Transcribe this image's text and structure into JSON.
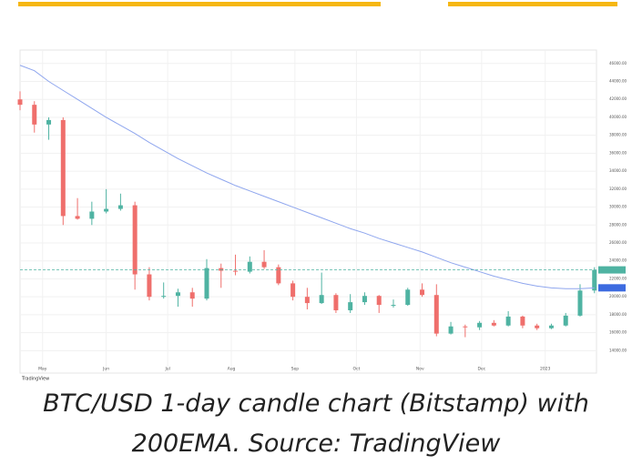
{
  "chart_data": {
    "type": "candlestick",
    "caption_lines": [
      "BTC/USD 1-day candle chart (Bitstamp) with",
      "200EMA. Source: TradingView"
    ],
    "watermark": "TradingView",
    "x": [
      0,
      7,
      14,
      21,
      28,
      35,
      42,
      49,
      56,
      63,
      70,
      77,
      84,
      91,
      98,
      105,
      112,
      119,
      126,
      133,
      140,
      147,
      154,
      161,
      168,
      175,
      182,
      189,
      196,
      203,
      210,
      217,
      224,
      231,
      238,
      245,
      252,
      259,
      266,
      273,
      280
    ],
    "open": [
      42000,
      41400,
      39200,
      39700,
      29000,
      28700,
      29500,
      29800,
      30200,
      22500,
      20000,
      20100,
      20500,
      19800,
      23200,
      22900,
      22800,
      23900,
      23300,
      21500,
      20000,
      19300,
      20200,
      18500,
      19400,
      20100,
      19100,
      19100,
      20800,
      20200,
      15900,
      16700,
      16600,
      17100,
      16800,
      17800,
      16800,
      16500,
      16800,
      17900,
      20700
    ],
    "high": [
      42900,
      41800,
      40000,
      40000,
      31000,
      30600,
      32000,
      31500,
      30600,
      23300,
      21600,
      20900,
      21000,
      24200,
      23700,
      24700,
      24500,
      25200,
      23600,
      21800,
      21000,
      22700,
      20400,
      20300,
      20500,
      20200,
      19700,
      21000,
      21500,
      21400,
      17200,
      16900,
      17300,
      17400,
      18400,
      17900,
      17000,
      17000,
      18200,
      21400,
      23300
    ],
    "low": [
      40800,
      38300,
      37500,
      28000,
      28600,
      28000,
      29300,
      29600,
      20800,
      19600,
      19800,
      18900,
      18900,
      19600,
      21000,
      22400,
      22600,
      23100,
      21300,
      19600,
      18600,
      19200,
      18200,
      18200,
      19100,
      18200,
      18800,
      19000,
      20000,
      15600,
      15800,
      15500,
      16300,
      16700,
      16700,
      16500,
      16300,
      16400,
      16700,
      17800,
      20400
    ],
    "close": [
      41400,
      39200,
      39700,
      29000,
      28700,
      29500,
      29800,
      30200,
      22500,
      20000,
      20100,
      20500,
      19800,
      23200,
      22900,
      22800,
      23900,
      23300,
      21500,
      20000,
      19300,
      20200,
      18500,
      19400,
      20100,
      19100,
      19100,
      20800,
      20200,
      15900,
      16700,
      16600,
      17100,
      16800,
      17800,
      16800,
      16500,
      16800,
      17900,
      20700,
      23000
    ],
    "up_color": "#4fb3a2",
    "down_color": "#ef6f6c",
    "ema": {
      "color": "#8fa6ee",
      "values": [
        45800,
        45200,
        44000,
        43000,
        42000,
        41000,
        40000,
        39100,
        38200,
        37200,
        36300,
        35400,
        34600,
        33800,
        33100,
        32400,
        31800,
        31200,
        30600,
        30000,
        29400,
        28800,
        28200,
        27600,
        27100,
        26500,
        26000,
        25500,
        25000,
        24400,
        23800,
        23300,
        22800,
        22300,
        21900,
        21500,
        21200,
        21000,
        20900,
        20900,
        21000
      ]
    },
    "xlim": [
      0,
      281
    ],
    "xticks": [
      {
        "value": 11,
        "label": "May"
      },
      {
        "value": 42,
        "label": "Jun"
      },
      {
        "value": 72,
        "label": "Jul"
      },
      {
        "value": 103,
        "label": "Aug"
      },
      {
        "value": 134,
        "label": "Sep"
      },
      {
        "value": 164,
        "label": "Oct"
      },
      {
        "value": 195,
        "label": "Nov"
      },
      {
        "value": 225,
        "label": "Dec"
      },
      {
        "value": 256,
        "label": "2023"
      }
    ],
    "ylim": [
      11500,
      47500
    ],
    "yticks": [
      {
        "value": 14000,
        "label": "14000.00"
      },
      {
        "value": 16000,
        "label": "16000.00"
      },
      {
        "value": 18000,
        "label": "18000.00"
      },
      {
        "value": 20000,
        "label": "20000.00"
      },
      {
        "value": 22000,
        "label": "22000.00"
      },
      {
        "value": 24000,
        "label": "24000.00"
      },
      {
        "value": 26000,
        "label": "26000.00"
      },
      {
        "value": 28000,
        "label": "28000.00"
      },
      {
        "value": 30000,
        "label": "30000.00"
      },
      {
        "value": 32000,
        "label": "32000.00"
      },
      {
        "value": 34000,
        "label": "34000.00"
      },
      {
        "value": 36000,
        "label": "36000.00"
      },
      {
        "value": 38000,
        "label": "38000.00"
      },
      {
        "value": 40000,
        "label": "40000.00"
      },
      {
        "value": 42000,
        "label": "42000.00"
      },
      {
        "value": 44000,
        "label": "44000.00"
      },
      {
        "value": 46000,
        "label": "46000.00"
      }
    ],
    "grid": true
  }
}
